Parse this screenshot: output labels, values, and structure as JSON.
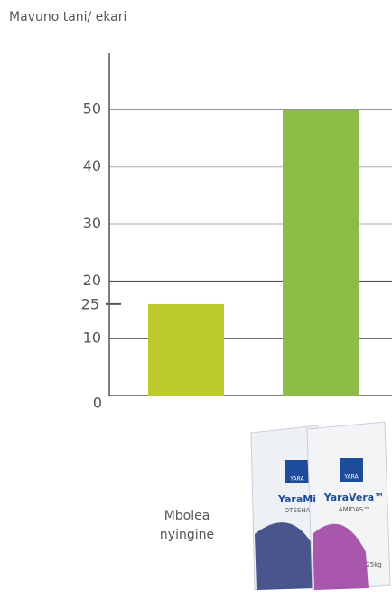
{
  "chart_data": {
    "type": "bar",
    "title": "Mavuno tani/ ekari",
    "categories": [
      "Mbolea nyingine",
      null
    ],
    "values": [
      16,
      50
    ],
    "colors": [
      "#bccb2c",
      "#8cbc44"
    ],
    "ylim": [
      0,
      60
    ],
    "yticks": [
      0,
      10,
      20,
      30,
      40,
      50
    ],
    "grid": true,
    "annotation": "25",
    "product_images": [
      {
        "brand": "YARA",
        "name": "YaraMi",
        "variant": "OTESHA"
      },
      {
        "brand": "YARA",
        "name": "YaraVera™",
        "variant": "AMIDAS™",
        "weight": "25kg"
      }
    ]
  }
}
